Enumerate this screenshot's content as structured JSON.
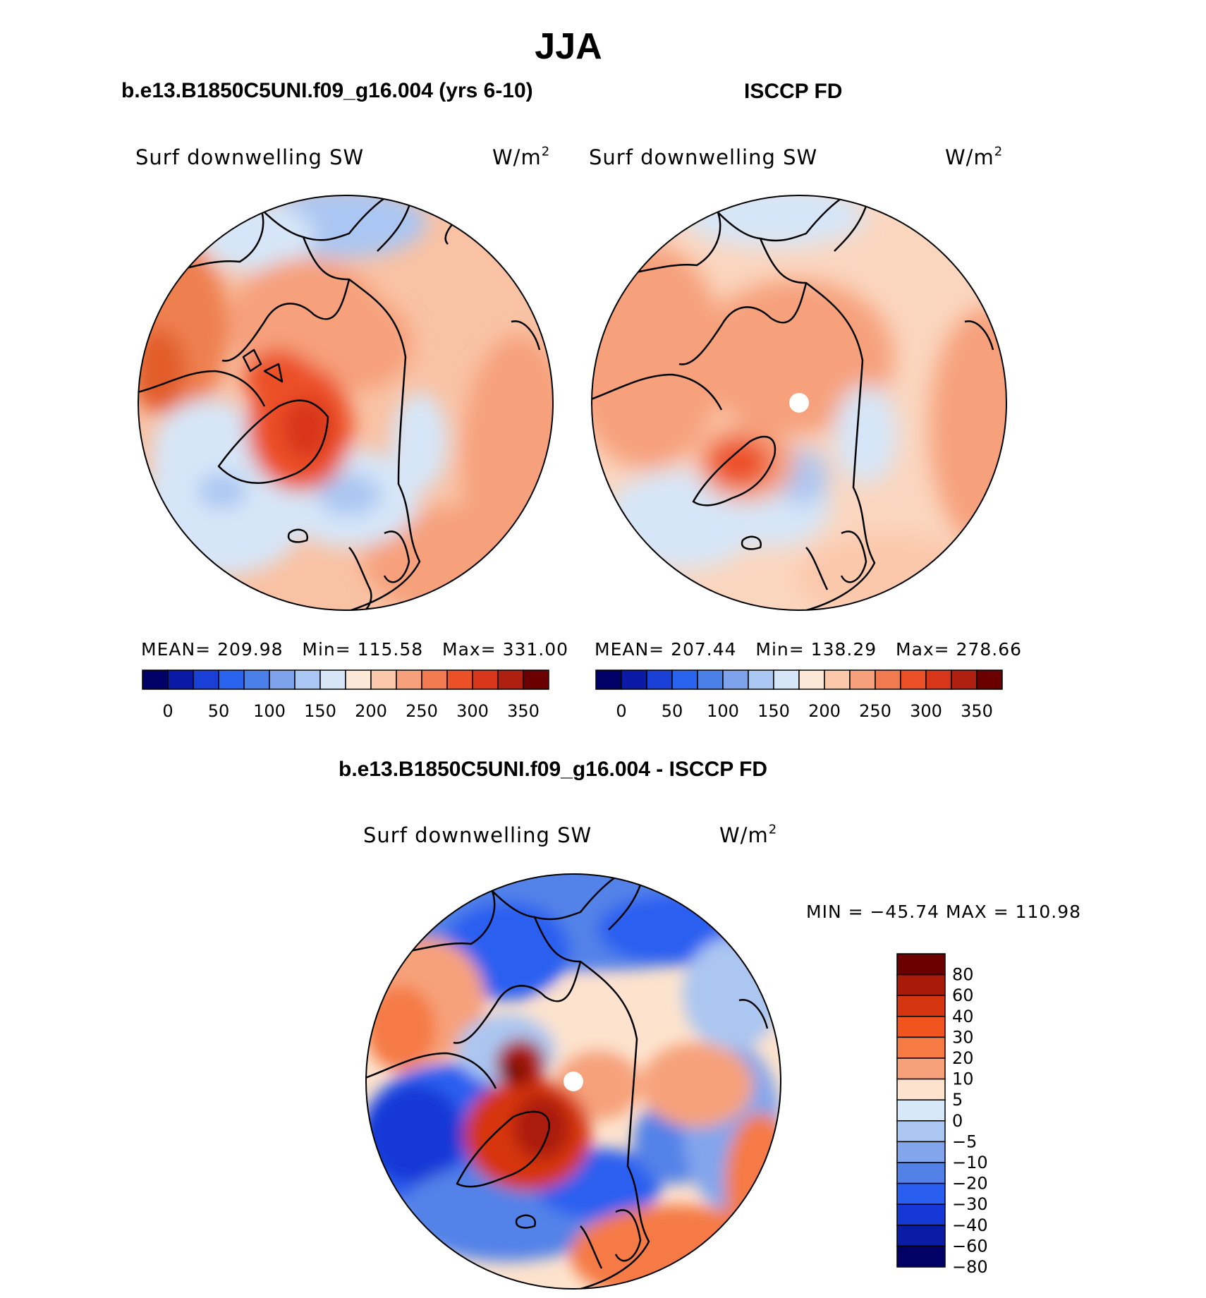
{
  "season_title": "JJA",
  "panels": [
    {
      "title": "b.e13.B1850C5UNI.f09_g16.004 (yrs 6-10)",
      "variable": "Surf downwelling SW",
      "units_base": "W/m",
      "units_exp": "2",
      "stats": {
        "mean_label": "MEAN=",
        "mean": "209.98",
        "min_label": "Min=",
        "min": "115.58",
        "max_label": "Max=",
        "max": "331.00"
      }
    },
    {
      "title": "ISCCP FD",
      "variable": "Surf downwelling SW",
      "units_base": "W/m",
      "units_exp": "2",
      "stats": {
        "mean_label": "MEAN=",
        "mean": "207.44",
        "min_label": "Min=",
        "min": "138.29",
        "max_label": "Max=",
        "max": "278.66"
      }
    }
  ],
  "diff_panel": {
    "title": "b.e13.B1850C5UNI.f09_g16.004 - ISCCP FD",
    "variable": "Surf downwelling SW",
    "units_base": "W/m",
    "units_exp": "2",
    "stats_text": "MIN = −45.74 MAX = 110.98"
  },
  "colorbar_top": {
    "colors": [
      "#000066",
      "#0a1aa6",
      "#1a3fd6",
      "#2a63ee",
      "#4a7fe8",
      "#7ea3ec",
      "#aac6f2",
      "#d6e6f8",
      "#fde8d8",
      "#fbc8ac",
      "#f6a07c",
      "#f27a50",
      "#ec5026",
      "#d8361a",
      "#b02010",
      "#6a0000"
    ],
    "labels": [
      "0",
      "50",
      "100",
      "150",
      "200",
      "250",
      "300",
      "350"
    ]
  },
  "colorbar_diff": {
    "colors": [
      "#6a0000",
      "#aa1a08",
      "#d6360f",
      "#f2541f",
      "#f57a44",
      "#f6a17a",
      "#fde3cd",
      "#d7e8f8",
      "#abc6f1",
      "#82a5ec",
      "#5282e8",
      "#2a5ef0",
      "#1638d6",
      "#0a1ca6",
      "#000066"
    ],
    "labels": [
      "80",
      "60",
      "40",
      "30",
      "20",
      "10",
      "5",
      "0",
      "−5",
      "−10",
      "−20",
      "−30",
      "−40",
      "−60",
      "−80"
    ]
  }
}
